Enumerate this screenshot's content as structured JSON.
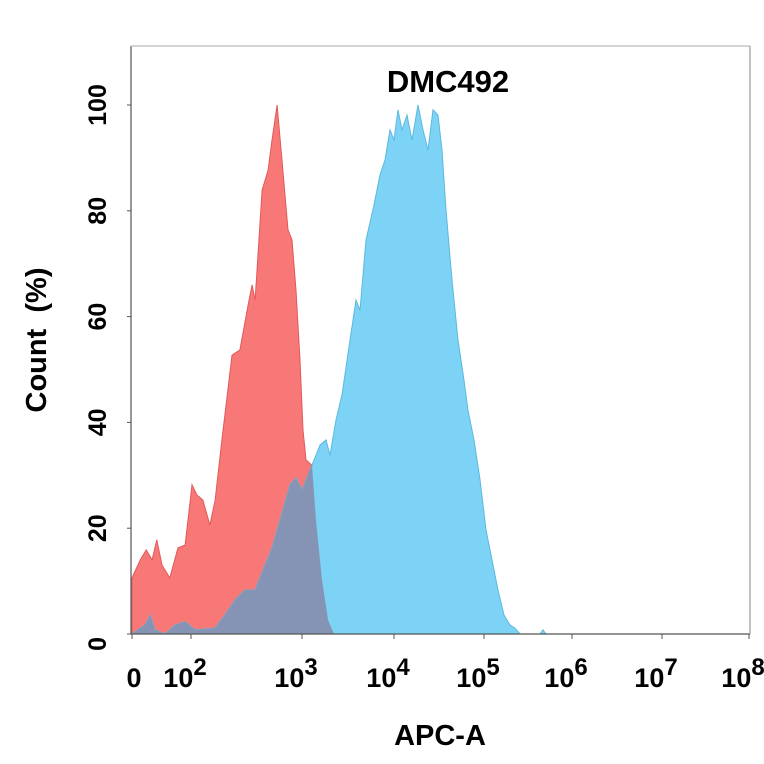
{
  "chart_data": {
    "type": "area",
    "title": "DMC492",
    "xlabel": "APC-A",
    "ylabel": "Count  (%)",
    "x_scale": "biexponential",
    "xlim": [
      0,
      100000000
    ],
    "ylim": [
      0,
      100
    ],
    "grid": false,
    "legend": "none",
    "x_ticks": [
      {
        "value": 0,
        "base": "0",
        "exp": ""
      },
      {
        "value": 100,
        "base": "10",
        "exp": "2"
      },
      {
        "value": 1000,
        "base": "10",
        "exp": "3"
      },
      {
        "value": 10000,
        "base": "10",
        "exp": "4"
      },
      {
        "value": 100000,
        "base": "10",
        "exp": "5"
      },
      {
        "value": 1000000,
        "base": "10",
        "exp": "6"
      },
      {
        "value": 10000000,
        "base": "10",
        "exp": "7"
      },
      {
        "value": 100000000,
        "base": "10",
        "exp": "8"
      }
    ],
    "y_ticks": [
      0,
      20,
      40,
      60,
      80,
      100
    ],
    "series": [
      {
        "color": "#7dd3f5",
        "points": [
          [
            0,
            0
          ],
          [
            22,
            1.7
          ],
          [
            31,
            3.6
          ],
          [
            39,
            0.8
          ],
          [
            56,
            0
          ],
          [
            73,
            1.7
          ],
          [
            90,
            2.3
          ],
          [
            109,
            0.8
          ],
          [
            164,
            1.1
          ],
          [
            202,
            3.6
          ],
          [
            249,
            6.4
          ],
          [
            306,
            8.3
          ],
          [
            377,
            8.3
          ],
          [
            464,
            13
          ],
          [
            537,
            16.3
          ],
          [
            634,
            21.5
          ],
          [
            780,
            28.2
          ],
          [
            883,
            29.5
          ],
          [
            1000,
            27.2
          ],
          [
            1222,
            31
          ],
          [
            1420,
            33.8
          ],
          [
            1570,
            35.7
          ],
          [
            1824,
            36.7
          ],
          [
            2014,
            33.8
          ],
          [
            2344,
            40.5
          ],
          [
            2722,
            45.2
          ],
          [
            3327,
            55.6
          ],
          [
            3864,
            63.1
          ],
          [
            4266,
            61.2
          ],
          [
            4966,
            74.5
          ],
          [
            6067,
            81.1
          ],
          [
            7047,
            86.8
          ],
          [
            7980,
            89.6
          ],
          [
            9050,
            95.3
          ],
          [
            10000,
            93.4
          ],
          [
            11080,
            99.1
          ],
          [
            12270,
            95.3
          ],
          [
            13940,
            98.1
          ],
          [
            15850,
            93.4
          ],
          [
            18480,
            100
          ],
          [
            21000,
            95.3
          ],
          [
            23870,
            91.5
          ],
          [
            27110,
            99.1
          ],
          [
            30830,
            98.1
          ],
          [
            34130,
            91.5
          ],
          [
            37840,
            80.2
          ],
          [
            44060,
            66.9
          ],
          [
            51400,
            55.6
          ],
          [
            59950,
            48
          ],
          [
            66370,
            42.3
          ],
          [
            77450,
            36.7
          ],
          [
            90300,
            29.2
          ],
          [
            105300,
            19.7
          ],
          [
            123300,
            14
          ],
          [
            144300,
            8.3
          ],
          [
            168700,
            3.6
          ],
          [
            197300,
            1.7
          ],
          [
            225100,
            1.1
          ],
          [
            256600,
            0
          ],
          [
            432900,
            0
          ],
          [
            467900,
            0.8
          ],
          [
            506600,
            0
          ],
          [
            100000000,
            0
          ]
        ]
      },
      {
        "color": "#f87878",
        "points": [
          [
            0,
            10.6
          ],
          [
            14,
            14
          ],
          [
            24,
            15.9
          ],
          [
            34,
            14
          ],
          [
            42,
            17.8
          ],
          [
            51,
            13
          ],
          [
            64,
            10.6
          ],
          [
            78,
            16.3
          ],
          [
            90,
            16.8
          ],
          [
            102,
            28.2
          ],
          [
            113,
            26.3
          ],
          [
            128,
            25.3
          ],
          [
            148,
            20.6
          ],
          [
            165,
            25.3
          ],
          [
            190,
            36.7
          ],
          [
            234,
            52.7
          ],
          [
            276,
            53.7
          ],
          [
            327,
            62.2
          ],
          [
            355,
            66
          ],
          [
            378,
            63.1
          ],
          [
            437,
            83.9
          ],
          [
            495,
            87.7
          ],
          [
            537,
            93.4
          ],
          [
            596,
            100
          ],
          [
            661,
            89.6
          ],
          [
            748,
            76.4
          ],
          [
            813,
            74.5
          ],
          [
            883,
            65
          ],
          [
            960,
            51.8
          ],
          [
            1025,
            38.6
          ],
          [
            1105,
            32.9
          ],
          [
            1284,
            31.9
          ],
          [
            1420,
            21.5
          ],
          [
            1650,
            10.2
          ],
          [
            1920,
            2.6
          ],
          [
            2230,
            0
          ]
        ]
      }
    ]
  }
}
